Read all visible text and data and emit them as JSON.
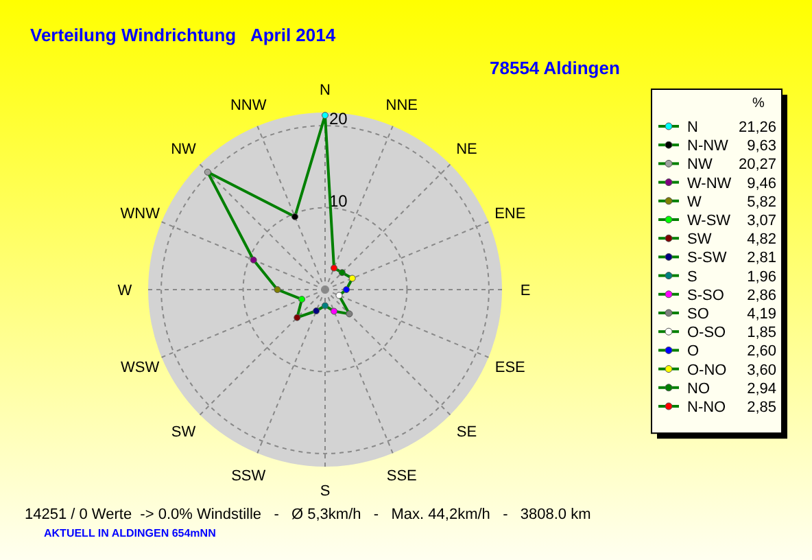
{
  "chart_data": [
    {
      "type": "radar",
      "title": "Verteilung Windrichtung   April 2014",
      "subtitle": "78554 Aldingen",
      "categories": [
        "N",
        "NNE",
        "NE",
        "ENE",
        "E",
        "ESE",
        "SE",
        "SSE",
        "S",
        "SSW",
        "SW",
        "WSW",
        "W",
        "WNW",
        "NW",
        "NNW"
      ],
      "series": [
        {
          "color": "#008000",
          "values": [
            21.26,
            2.85,
            2.94,
            3.6,
            2.6,
            1.85,
            4.19,
            2.86,
            1.96,
            2.81,
            4.82,
            3.07,
            5.82,
            9.46,
            20.27,
            9.63
          ],
          "colors": [
            "#00ffff",
            "#ff0000",
            "#008000",
            "#ffff00",
            "#0000ff",
            "#ffffff",
            "#808080",
            "#ff00ff",
            "#008080",
            "#000080",
            "#800000",
            "#00ff00",
            "#808000",
            "#800080",
            "#a0a0a0",
            "#000000"
          ]
        }
      ],
      "ylim": [
        0,
        21.6
      ],
      "yticks": [
        10,
        20
      ],
      "grid": true,
      "marker": "circle",
      "line_style": "solid",
      "annotations": [
        "14251 / 0 Werte  -> 0.0% Windstille   -   Ø 5,3km/h   -   Max. 44,2km/h   -   3808.0 km",
        "AKTUELL IN ALDINGEN 654mNN"
      ]
    },
    {
      "type": "other",
      "legend_title": "%",
      "categories": [
        "N",
        "N-NW",
        "NW",
        "W-NW",
        "W",
        "W-SW",
        "SW",
        "S-SW",
        "S",
        "S-SO",
        "SO",
        "O-SO",
        "O",
        "O-NO",
        "NO",
        "N-NO"
      ],
      "value_labels": [
        "21,26",
        "9,63",
        "20,27",
        "9,46",
        "5,82",
        "3,07",
        "4,82",
        "2,81",
        "1,96",
        "2,86",
        "4,19",
        "1,85",
        "2,60",
        "3,60",
        "2,94",
        "2,85"
      ],
      "colors": [
        "#00ffff",
        "#000000",
        "#a0a0a0",
        "#800080",
        "#808000",
        "#00ff00",
        "#800000",
        "#000080",
        "#008080",
        "#ff00ff",
        "#808080",
        "#ffffff",
        "#0000ff",
        "#ffff00",
        "#008000",
        "#ff0000"
      ],
      "color": "#008000"
    }
  ]
}
